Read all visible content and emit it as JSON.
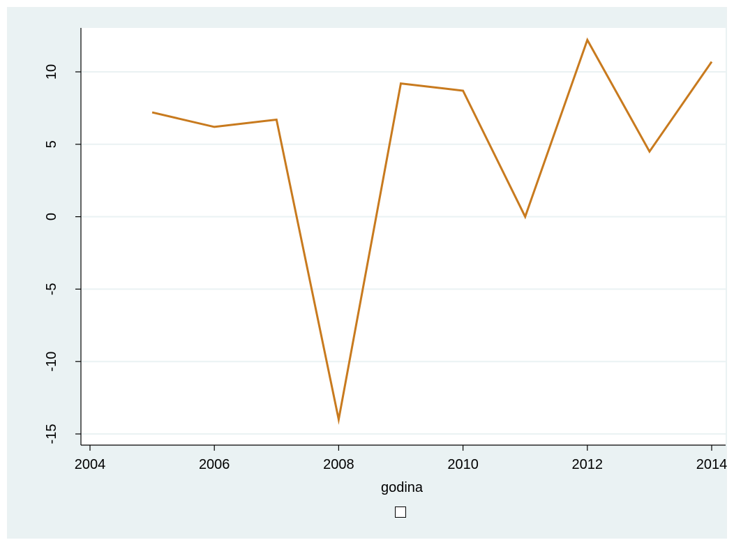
{
  "chart_data": {
    "type": "line",
    "title": "",
    "xlabel": "godina",
    "ylabel": "",
    "xlim": [
      2004,
      2014
    ],
    "ylim": [
      -15,
      10
    ],
    "x_ticks": [
      "2004",
      "2006",
      "2008",
      "2010",
      "2012",
      "2014"
    ],
    "y_ticks": [
      "-15",
      "-10",
      "-5",
      "0",
      "5",
      "10"
    ],
    "grid": "horizontal",
    "legend": "bottom-center",
    "series": [
      {
        "color": "#c87a1e",
        "x": [
          2005,
          2006,
          2007,
          2008,
          2009,
          2010,
          2011,
          2012,
          2013,
          2014
        ],
        "y": [
          7.2,
          6.2,
          6.7,
          -14.0,
          9.2,
          8.7,
          0.0,
          12.2,
          4.5,
          10.7
        ]
      }
    ]
  },
  "colors": {
    "background": "#eaf2f3",
    "plot_area": "#ffffff",
    "grid": "#eaf2f3",
    "series_line": "#c87a1e"
  }
}
